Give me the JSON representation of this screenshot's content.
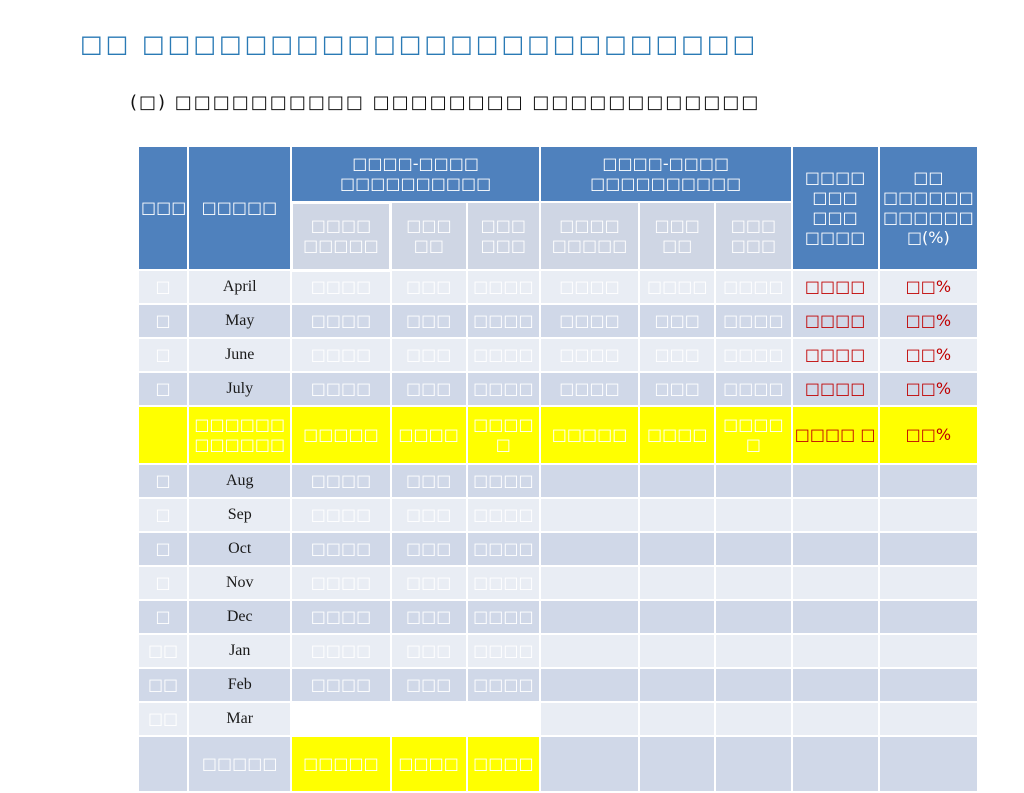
{
  "page": {
    "title": "□□ □□□□□□□□□□□□□□□□□□□□□□□□",
    "subtitle": "(□) □□□□□□□□□□ □□□□□□□□ □□□□□□□□□□□□"
  },
  "table": {
    "headers": {
      "col1": "□□□",
      "col2": "□□□□□",
      "group1": "□□□□-□□□□ □□□□□□□□□□",
      "group2": "□□□□-□□□□ □□□□□□□□□□",
      "col_h": "□□□□ □□□ □□□ □□□□",
      "col_i": "□□ □□□□□□ □□□□□□ □(%)",
      "sub1": "□□□□ □□□□□",
      "sub2": "□□□ □□",
      "sub3": "□□□ □□□",
      "sub4": "□□□□ □□□□□",
      "sub5": "□□□ □□",
      "sub6": "□□□ □□□"
    },
    "rows": [
      {
        "no": "□",
        "month": "April",
        "c1": "□□□□",
        "c2": "□□□",
        "c3": "□□□□",
        "c4": "□□□□",
        "c5": "□□□□",
        "c6": "□□□□",
        "c7": "□□□□",
        "c8": "□□%"
      },
      {
        "no": "□",
        "month": "May",
        "c1": "□□□□",
        "c2": "□□□",
        "c3": "□□□□",
        "c4": "□□□□",
        "c5": "□□□",
        "c6": "□□□□",
        "c7": "□□□□",
        "c8": "□□%"
      },
      {
        "no": "□",
        "month": "June",
        "c1": "□□□□",
        "c2": "□□□",
        "c3": "□□□□",
        "c4": "□□□□",
        "c5": "□□□",
        "c6": "□□□□",
        "c7": "□□□□",
        "c8": "□□%"
      },
      {
        "no": "□",
        "month": "July",
        "c1": "□□□□",
        "c2": "□□□",
        "c3": "□□□□",
        "c4": "□□□□",
        "c5": "□□□",
        "c6": "□□□□",
        "c7": "□□□□",
        "c8": "□□%"
      }
    ],
    "subtotal": {
      "label": "□□□□□□ □□□□□□",
      "c1": "□□□□□",
      "c2": "□□□□",
      "c3": "□□□□ □",
      "c4": "□□□□□",
      "c5": "□□□□",
      "c6": "□□□□ □",
      "c7": "□□□□ □",
      "c8": "□□%"
    },
    "rows2": [
      {
        "no": "□",
        "month": "Aug",
        "c1": "□□□□",
        "c2": "□□□",
        "c3": "□□□□"
      },
      {
        "no": "□",
        "month": "Sep",
        "c1": "□□□□",
        "c2": "□□□",
        "c3": "□□□□"
      },
      {
        "no": "□",
        "month": "Oct",
        "c1": "□□□□",
        "c2": "□□□",
        "c3": "□□□□"
      },
      {
        "no": "□",
        "month": "Nov",
        "c1": "□□□□",
        "c2": "□□□",
        "c3": "□□□□"
      },
      {
        "no": "□",
        "month": "Dec",
        "c1": "□□□□",
        "c2": "□□□",
        "c3": "□□□□"
      },
      {
        "no": "□□",
        "month": "Jan",
        "c1": "□□□□",
        "c2": "□□□",
        "c3": "□□□□"
      },
      {
        "no": "□□",
        "month": "Feb",
        "c1": "□□□□",
        "c2": "□□□",
        "c3": "□□□□"
      },
      {
        "no": "□□",
        "month": "Mar",
        "c1": "□□□□",
        "c2": "□□□",
        "c3": "□□□□"
      }
    ],
    "total": {
      "label": "□□□□□",
      "c1": "□□□□□",
      "c2": "□□□□",
      "c3": "□□□□"
    }
  }
}
